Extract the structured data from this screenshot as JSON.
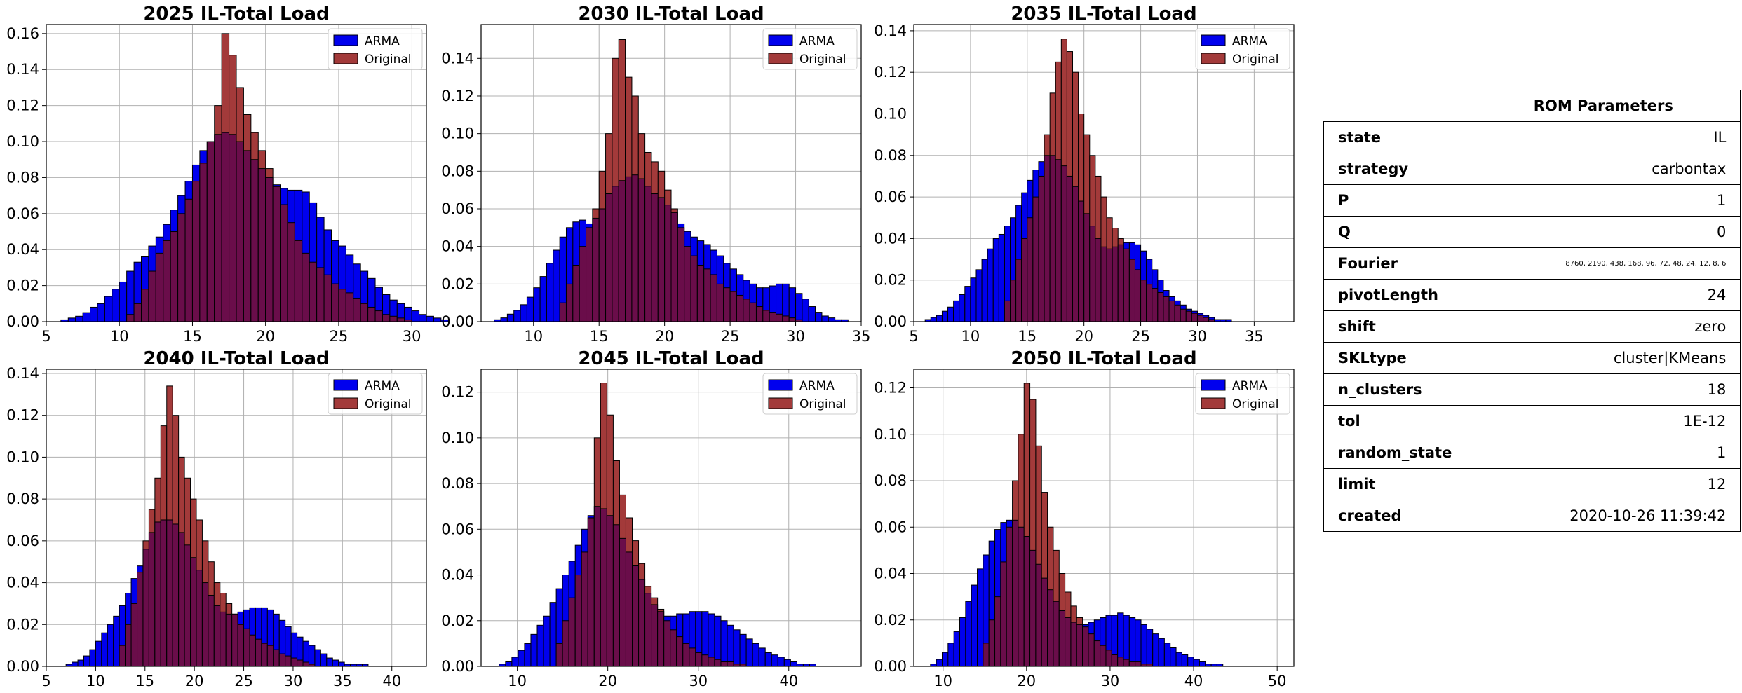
{
  "colors": {
    "arma": "#0000ee",
    "original": "#a33a3a",
    "overlap": "#6a0d4a"
  },
  "legend": {
    "arma_label": "ARMA",
    "original_label": "Original"
  },
  "chart_data": [
    {
      "type": "bar",
      "title": "2025 IL-Total Load",
      "xlim": [
        5,
        31
      ],
      "ylim": [
        0,
        0.165
      ],
      "xticks": [
        5,
        10,
        15,
        20,
        25,
        30
      ],
      "yticks": [
        0,
        0.02,
        0.04,
        0.06,
        0.08,
        0.1,
        0.12,
        0.14,
        0.16
      ],
      "bin_start": 6,
      "bin_width": 0.5,
      "grid": true,
      "legend_position": "top-right",
      "series": [
        {
          "name": "ARMA",
          "values": [
            0.001,
            0.002,
            0.003,
            0.005,
            0.008,
            0.01,
            0.014,
            0.018,
            0.022,
            0.028,
            0.033,
            0.036,
            0.042,
            0.047,
            0.054,
            0.062,
            0.07,
            0.078,
            0.087,
            0.095,
            0.1,
            0.104,
            0.105,
            0.104,
            0.1,
            0.095,
            0.09,
            0.085,
            0.08,
            0.076,
            0.074,
            0.073,
            0.073,
            0.072,
            0.066,
            0.058,
            0.051,
            0.045,
            0.042,
            0.037,
            0.032,
            0.028,
            0.024,
            0.019,
            0.015,
            0.012,
            0.01,
            0.008,
            0.006,
            0.004,
            0.003,
            0.002,
            0.001
          ]
        },
        {
          "name": "Original",
          "values": [
            0,
            0,
            0,
            0,
            0,
            0,
            0,
            0,
            0,
            0.004,
            0.01,
            0.018,
            0.028,
            0.038,
            0.045,
            0.05,
            0.06,
            0.068,
            0.078,
            0.088,
            0.1,
            0.12,
            0.16,
            0.148,
            0.13,
            0.115,
            0.105,
            0.095,
            0.085,
            0.075,
            0.065,
            0.055,
            0.045,
            0.038,
            0.033,
            0.03,
            0.026,
            0.021,
            0.018,
            0.016,
            0.013,
            0.01,
            0.008,
            0.006,
            0.004,
            0.003,
            0.002,
            0.001,
            0,
            0,
            0,
            0,
            0
          ]
        }
      ]
    },
    {
      "type": "bar",
      "title": "2030 IL-Total Load",
      "xlim": [
        6,
        35
      ],
      "ylim": [
        0,
        0.158
      ],
      "xticks": [
        10,
        15,
        20,
        25,
        30,
        35
      ],
      "yticks": [
        0,
        0.02,
        0.04,
        0.06,
        0.08,
        0.1,
        0.12,
        0.14
      ],
      "bin_start": 7,
      "bin_width": 0.5,
      "grid": true,
      "legend_position": "top-right",
      "series": [
        {
          "name": "ARMA",
          "values": [
            0.001,
            0.002,
            0.004,
            0.006,
            0.009,
            0.013,
            0.018,
            0.024,
            0.031,
            0.038,
            0.045,
            0.05,
            0.053,
            0.054,
            0.052,
            0.055,
            0.06,
            0.068,
            0.072,
            0.075,
            0.077,
            0.078,
            0.076,
            0.072,
            0.068,
            0.066,
            0.062,
            0.058,
            0.052,
            0.048,
            0.045,
            0.043,
            0.041,
            0.038,
            0.035,
            0.031,
            0.028,
            0.025,
            0.022,
            0.02,
            0.018,
            0.018,
            0.019,
            0.02,
            0.02,
            0.018,
            0.015,
            0.012,
            0.008,
            0.005,
            0.003,
            0.002,
            0.001,
            0.001,
            0,
            0
          ]
        },
        {
          "name": "Original",
          "values": [
            0,
            0,
            0,
            0,
            0,
            0,
            0,
            0,
            0,
            0,
            0.01,
            0.02,
            0.03,
            0.04,
            0.05,
            0.06,
            0.08,
            0.1,
            0.14,
            0.15,
            0.13,
            0.12,
            0.1,
            0.09,
            0.085,
            0.08,
            0.07,
            0.06,
            0.05,
            0.04,
            0.035,
            0.03,
            0.028,
            0.025,
            0.02,
            0.018,
            0.016,
            0.014,
            0.012,
            0.01,
            0.008,
            0.006,
            0.005,
            0.004,
            0.003,
            0.002,
            0.001,
            0,
            0,
            0,
            0,
            0,
            0,
            0,
            0,
            0
          ]
        }
      ]
    },
    {
      "type": "bar",
      "title": "2035 IL-Total Load",
      "xlim": [
        5,
        38.5
      ],
      "ylim": [
        0,
        0.143
      ],
      "xticks": [
        5,
        10,
        15,
        20,
        25,
        30,
        35
      ],
      "yticks": [
        0,
        0.02,
        0.04,
        0.06,
        0.08,
        0.1,
        0.12,
        0.14
      ],
      "bin_start": 6,
      "bin_width": 0.5,
      "grid": true,
      "legend_position": "top-right",
      "series": [
        {
          "name": "ARMA",
          "values": [
            0.001,
            0.002,
            0.003,
            0.005,
            0.007,
            0.01,
            0.013,
            0.017,
            0.021,
            0.025,
            0.03,
            0.035,
            0.04,
            0.042,
            0.046,
            0.05,
            0.056,
            0.062,
            0.068,
            0.073,
            0.077,
            0.08,
            0.08,
            0.078,
            0.075,
            0.07,
            0.065,
            0.058,
            0.052,
            0.046,
            0.04,
            0.036,
            0.035,
            0.036,
            0.037,
            0.038,
            0.038,
            0.037,
            0.034,
            0.03,
            0.025,
            0.02,
            0.015,
            0.012,
            0.01,
            0.008,
            0.006,
            0.005,
            0.004,
            0.003,
            0.002,
            0.001,
            0.001,
            0.001,
            0,
            0,
            0,
            0,
            0,
            0,
            0,
            0,
            0
          ]
        },
        {
          "name": "Original",
          "values": [
            0,
            0,
            0,
            0,
            0,
            0,
            0,
            0,
            0,
            0,
            0,
            0,
            0,
            0,
            0.01,
            0.02,
            0.03,
            0.04,
            0.05,
            0.06,
            0.07,
            0.09,
            0.11,
            0.125,
            0.136,
            0.13,
            0.12,
            0.1,
            0.09,
            0.08,
            0.07,
            0.06,
            0.05,
            0.045,
            0.04,
            0.035,
            0.03,
            0.025,
            0.02,
            0.018,
            0.016,
            0.014,
            0.012,
            0.01,
            0.008,
            0.006,
            0.005,
            0.004,
            0.003,
            0.002,
            0.001,
            0,
            0,
            0,
            0,
            0,
            0,
            0,
            0,
            0,
            0,
            0,
            0
          ]
        }
      ]
    },
    {
      "type": "bar",
      "title": "2040 IL-Total Load",
      "xlim": [
        5,
        43.5
      ],
      "ylim": [
        0,
        0.142
      ],
      "xticks": [
        5,
        10,
        15,
        20,
        25,
        30,
        35,
        40
      ],
      "yticks": [
        0,
        0.02,
        0.04,
        0.06,
        0.08,
        0.1,
        0.12,
        0.14
      ],
      "bin_start": 7,
      "bin_width": 0.6,
      "grid": true,
      "legend_position": "top-right",
      "series": [
        {
          "name": "ARMA",
          "values": [
            0.001,
            0.002,
            0.003,
            0.005,
            0.008,
            0.012,
            0.016,
            0.02,
            0.024,
            0.029,
            0.035,
            0.042,
            0.048,
            0.056,
            0.064,
            0.069,
            0.07,
            0.07,
            0.068,
            0.064,
            0.058,
            0.052,
            0.046,
            0.04,
            0.034,
            0.029,
            0.026,
            0.025,
            0.025,
            0.026,
            0.027,
            0.028,
            0.028,
            0.028,
            0.027,
            0.025,
            0.022,
            0.019,
            0.016,
            0.014,
            0.012,
            0.01,
            0.008,
            0.006,
            0.004,
            0.003,
            0.002,
            0.001,
            0.001,
            0.001,
            0.001,
            0,
            0,
            0,
            0,
            0,
            0,
            0,
            0,
            0,
            0,
            0,
            0,
            0,
            0
          ]
        },
        {
          "name": "Original",
          "values": [
            0,
            0,
            0,
            0,
            0,
            0,
            0,
            0,
            0,
            0.01,
            0.02,
            0.03,
            0.045,
            0.06,
            0.075,
            0.09,
            0.115,
            0.134,
            0.12,
            0.1,
            0.09,
            0.08,
            0.07,
            0.06,
            0.05,
            0.04,
            0.035,
            0.03,
            0.025,
            0.02,
            0.018,
            0.015,
            0.013,
            0.011,
            0.01,
            0.008,
            0.006,
            0.005,
            0.004,
            0.003,
            0.002,
            0.001,
            0,
            0,
            0,
            0,
            0,
            0,
            0,
            0,
            0,
            0,
            0,
            0,
            0,
            0,
            0,
            0,
            0,
            0,
            0,
            0,
            0,
            0,
            0
          ]
        }
      ]
    },
    {
      "type": "bar",
      "title": "2045 IL-Total Load",
      "xlim": [
        6,
        48
      ],
      "ylim": [
        0,
        0.13
      ],
      "xticks": [
        10,
        20,
        30,
        40
      ],
      "yticks": [
        0,
        0.02,
        0.04,
        0.06,
        0.08,
        0.1,
        0.12
      ],
      "bin_start": 8,
      "bin_width": 0.7,
      "grid": true,
      "legend_position": "top-right",
      "series": [
        {
          "name": "ARMA",
          "values": [
            0.001,
            0.002,
            0.004,
            0.007,
            0.01,
            0.014,
            0.018,
            0.022,
            0.028,
            0.034,
            0.04,
            0.046,
            0.053,
            0.06,
            0.066,
            0.07,
            0.069,
            0.066,
            0.062,
            0.056,
            0.05,
            0.044,
            0.038,
            0.032,
            0.027,
            0.024,
            0.022,
            0.022,
            0.023,
            0.023,
            0.024,
            0.024,
            0.024,
            0.023,
            0.022,
            0.02,
            0.018,
            0.016,
            0.014,
            0.012,
            0.01,
            0.008,
            0.006,
            0.005,
            0.004,
            0.003,
            0.002,
            0.001,
            0.001,
            0.001,
            0,
            0,
            0,
            0,
            0,
            0,
            0
          ]
        },
        {
          "name": "Original",
          "values": [
            0,
            0,
            0,
            0,
            0,
            0,
            0,
            0,
            0,
            0.01,
            0.02,
            0.03,
            0.04,
            0.05,
            0.065,
            0.1,
            0.124,
            0.11,
            0.09,
            0.075,
            0.065,
            0.055,
            0.045,
            0.035,
            0.03,
            0.025,
            0.02,
            0.016,
            0.013,
            0.01,
            0.008,
            0.006,
            0.005,
            0.004,
            0.003,
            0.002,
            0.002,
            0.001,
            0.001,
            0,
            0,
            0,
            0,
            0,
            0,
            0,
            0,
            0,
            0,
            0,
            0,
            0,
            0,
            0,
            0,
            0,
            0
          ]
        }
      ]
    },
    {
      "type": "bar",
      "title": "2050 IL-Total Load",
      "xlim": [
        6.5,
        52
      ],
      "ylim": [
        0,
        0.128
      ],
      "xticks": [
        10,
        20,
        30,
        40,
        50
      ],
      "yticks": [
        0,
        0.02,
        0.04,
        0.06,
        0.08,
        0.1,
        0.12
      ],
      "bin_start": 8.5,
      "bin_width": 0.7,
      "grid": true,
      "legend_position": "top-right",
      "series": [
        {
          "name": "ARMA",
          "values": [
            0.001,
            0.003,
            0.006,
            0.01,
            0.015,
            0.021,
            0.028,
            0.035,
            0.042,
            0.048,
            0.054,
            0.059,
            0.062,
            0.063,
            0.063,
            0.06,
            0.056,
            0.05,
            0.044,
            0.038,
            0.033,
            0.028,
            0.024,
            0.021,
            0.019,
            0.018,
            0.018,
            0.019,
            0.02,
            0.021,
            0.022,
            0.022,
            0.023,
            0.022,
            0.021,
            0.02,
            0.018,
            0.016,
            0.014,
            0.012,
            0.01,
            0.008,
            0.006,
            0.005,
            0.004,
            0.003,
            0.002,
            0.001,
            0.001,
            0.001,
            0,
            0,
            0,
            0,
            0,
            0,
            0,
            0,
            0,
            0,
            0,
            0,
            0,
            0,
            0
          ]
        },
        {
          "name": "Original",
          "values": [
            0,
            0,
            0,
            0,
            0,
            0,
            0,
            0,
            0,
            0.01,
            0.02,
            0.03,
            0.045,
            0.06,
            0.08,
            0.1,
            0.122,
            0.115,
            0.095,
            0.075,
            0.06,
            0.05,
            0.04,
            0.032,
            0.026,
            0.021,
            0.017,
            0.014,
            0.011,
            0.009,
            0.007,
            0.005,
            0.004,
            0.003,
            0.002,
            0.002,
            0.001,
            0.001,
            0,
            0,
            0,
            0,
            0,
            0,
            0,
            0,
            0,
            0,
            0,
            0,
            0,
            0,
            0,
            0,
            0,
            0,
            0,
            0,
            0,
            0,
            0,
            0,
            0,
            0,
            0
          ]
        }
      ]
    }
  ],
  "table": {
    "header": "ROM Parameters",
    "rows": [
      {
        "key": "state",
        "value": "IL"
      },
      {
        "key": "strategy",
        "value": "carbontax"
      },
      {
        "key": "P",
        "value": "1"
      },
      {
        "key": "Q",
        "value": "0"
      },
      {
        "key": "Fourier",
        "value": "8760, 2190, 438, 168, 96, 72, 48, 24, 12, 8, 6"
      },
      {
        "key": "pivotLength",
        "value": "24"
      },
      {
        "key": "shift",
        "value": "zero"
      },
      {
        "key": "SKLtype",
        "value": "cluster|KMeans"
      },
      {
        "key": "n_clusters",
        "value": "18"
      },
      {
        "key": "tol",
        "value": "1E-12"
      },
      {
        "key": "random_state",
        "value": "1"
      },
      {
        "key": "limit",
        "value": "12"
      },
      {
        "key": "created",
        "value": "2020-10-26 11:39:42"
      }
    ]
  }
}
